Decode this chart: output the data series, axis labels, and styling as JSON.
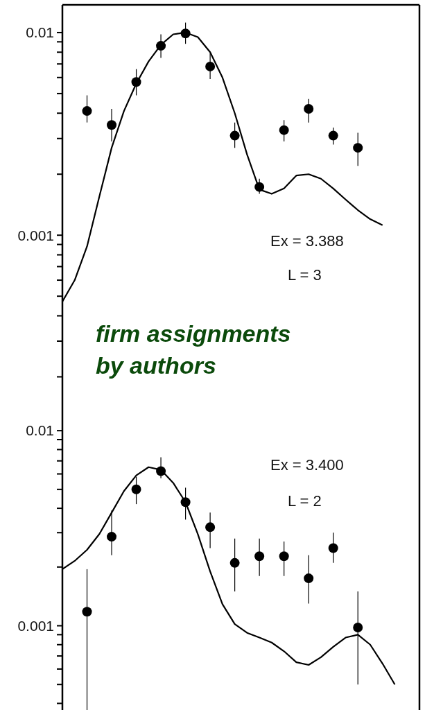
{
  "chart_data": [
    {
      "type": "scatter",
      "log": "y",
      "annotations": [
        "Ex = 3.388",
        "L = 3",
        "firm assignments\nby authors"
      ],
      "categories": [
        null,
        null,
        null,
        null,
        null,
        null,
        null,
        null,
        null,
        null,
        null,
        null,
        null,
        null,
        null,
        null,
        null,
        null,
        null,
        null,
        null,
        null,
        null,
        null,
        null,
        null,
        null,
        null,
        null,
        null
      ],
      "ylim": [
        0.00015,
        0.0137
      ],
      "yticks": [
        {
          "value": 0.0002,
          "label": null
        },
        {
          "value": 0.0003,
          "label": null
        },
        {
          "value": 0.0004,
          "label": null
        },
        {
          "value": 0.0005,
          "label": null
        },
        {
          "value": 0.0006,
          "label": null
        },
        {
          "value": 0.0007,
          "label": null
        },
        {
          "value": 0.0008,
          "label": null
        },
        {
          "value": 0.0009,
          "label": null
        },
        0.001,
        {
          "value": 0.002,
          "label": null
        },
        {
          "value": 0.003,
          "label": null
        },
        {
          "value": 0.004,
          "label": null
        },
        {
          "value": 0.005,
          "label": null
        },
        {
          "value": 0.006,
          "label": null
        },
        {
          "value": 0.007,
          "label": null
        },
        {
          "value": 0.008,
          "label": null
        },
        {
          "value": 0.009,
          "label": null
        },
        0.01
      ],
      "series": [
        {
          "color": "#000000",
          "marker": "circle",
          "values": [
            null,
            null,
            0.0041,
            null,
            0.0035,
            null,
            0.0057,
            null,
            0.0086,
            null,
            0.0099,
            null,
            0.0068,
            null,
            0.0031,
            null,
            0.00173,
            null,
            0.0033,
            null,
            0.0042,
            null,
            0.0031,
            null,
            0.0027,
            null,
            null,
            null,
            null,
            null
          ],
          "errors": [
            null,
            null,
            [
              0.0036,
              0.0049
            ],
            null,
            [
              0.0029,
              0.0042
            ],
            null,
            [
              0.0049,
              0.0066
            ],
            null,
            [
              0.0075,
              0.0098
            ],
            null,
            [
              0.0088,
              0.0112
            ],
            null,
            [
              0.0059,
              0.0079
            ],
            null,
            [
              0.0027,
              0.0036
            ],
            null,
            [
              0.0016,
              0.0019
            ],
            null,
            [
              0.0029,
              0.0037
            ],
            null,
            [
              0.0036,
              0.0047
            ],
            null,
            [
              0.0028,
              0.0034
            ],
            null,
            [
              0.0022,
              0.0032
            ],
            null,
            null,
            null,
            null,
            null
          ]
        },
        {
          "type": "line",
          "color": "#000000",
          "values": [
            0.00047,
            0.0006,
            0.00088,
            0.00155,
            0.0027,
            0.0041,
            0.0056,
            0.0072,
            0.0087,
            0.0098,
            0.01,
            0.0095,
            0.008,
            0.006,
            0.004,
            0.0025,
            0.00168,
            0.0016,
            0.0017,
            0.00197,
            0.002,
            0.0019,
            0.0017,
            0.0015,
            0.00133,
            0.0012,
            0.00112,
            null,
            null,
            null
          ]
        }
      ]
    },
    {
      "type": "scatter",
      "log": "y",
      "annotations": [
        "Ex = 3.400",
        "L = 2"
      ],
      "categories": [
        null,
        null,
        null,
        null,
        null,
        null,
        null,
        null,
        null,
        null,
        null,
        null,
        null,
        null,
        null,
        null,
        null,
        null,
        null,
        null,
        null,
        null,
        null,
        null,
        null,
        null,
        null,
        null,
        null,
        null
      ],
      "ylim": [
        0.00037,
        0.014
      ],
      "yticks": [
        {
          "value": 0.0004,
          "label": null
        },
        {
          "value": 0.0005,
          "label": null
        },
        {
          "value": 0.0006,
          "label": null
        },
        {
          "value": 0.0007,
          "label": null
        },
        {
          "value": 0.0008,
          "label": null
        },
        {
          "value": 0.0009,
          "label": null
        },
        0.001,
        {
          "value": 0.002,
          "label": null
        },
        {
          "value": 0.003,
          "label": null
        },
        {
          "value": 0.004,
          "label": null
        },
        {
          "value": 0.005,
          "label": null
        },
        {
          "value": 0.006,
          "label": null
        },
        {
          "value": 0.007,
          "label": null
        },
        {
          "value": 0.008,
          "label": null
        },
        {
          "value": 0.009,
          "label": null
        },
        0.01
      ],
      "series": [
        {
          "color": "#000000",
          "marker": "circle",
          "values": [
            null,
            null,
            0.00118,
            null,
            0.00286,
            null,
            0.005,
            null,
            0.0062,
            null,
            0.0043,
            null,
            0.0032,
            null,
            0.0021,
            null,
            0.00227,
            null,
            0.00227,
            null,
            0.00175,
            null,
            0.0025,
            null,
            0.00098,
            null,
            null,
            null,
            null,
            null
          ],
          "errors": [
            null,
            null,
            [
              0.00037,
              0.00195
            ],
            null,
            [
              0.0023,
              0.0039
            ],
            null,
            [
              0.0042,
              0.0058
            ],
            null,
            [
              0.0057,
              0.0073
            ],
            null,
            [
              0.0035,
              0.0051
            ],
            null,
            [
              0.0025,
              0.0038
            ],
            null,
            [
              0.0015,
              0.0028
            ],
            null,
            [
              0.0018,
              0.0028
            ],
            null,
            [
              0.0018,
              0.0027
            ],
            null,
            [
              0.0013,
              0.0023
            ],
            null,
            [
              0.0021,
              0.003
            ],
            null,
            [
              0.0005,
              0.0015
            ],
            null,
            null,
            null,
            null,
            null
          ]
        },
        {
          "type": "line",
          "color": "#000000",
          "values": [
            0.00195,
            0.00215,
            0.00245,
            0.00295,
            0.0038,
            0.0049,
            0.0059,
            0.0065,
            0.0063,
            0.0054,
            0.0043,
            0.00295,
            0.0019,
            0.00129,
            0.00102,
            0.00092,
            0.00087,
            0.00082,
            0.00074,
            0.00065,
            0.00063,
            0.00069,
            0.00078,
            0.00087,
            0.0009,
            0.0008,
            0.00064,
            0.0005,
            null,
            null
          ]
        }
      ]
    }
  ]
}
